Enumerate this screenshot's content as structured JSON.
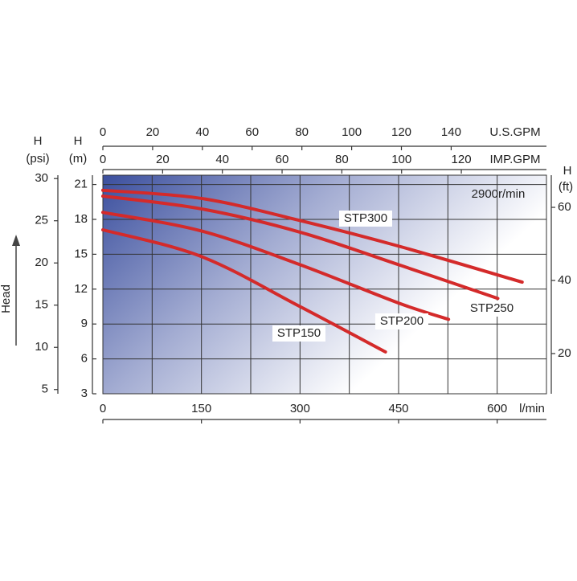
{
  "chart_data": {
    "type": "line",
    "annotation": "2900r/min",
    "side_label": "Head",
    "xlabel": "l/min",
    "xlim": [
      0,
      675
    ],
    "xticks": [
      0,
      150,
      300,
      450,
      600
    ],
    "xgrid": [
      75,
      225,
      375,
      525
    ],
    "ylabel": [
      "H",
      "(m)"
    ],
    "ylim": [
      3,
      21.8
    ],
    "yticks": [
      3,
      6,
      9,
      12,
      15,
      18,
      21
    ],
    "grid": true,
    "psi_axis": {
      "label": [
        "H",
        "(psi)"
      ],
      "lim": [
        4.5,
        30.4
      ],
      "ticks": [
        5,
        10,
        15,
        20,
        25,
        30
      ]
    },
    "ft_axis": {
      "label": [
        "H",
        "(ft)"
      ],
      "lim": [
        9,
        68.8
      ],
      "ticks": [
        20,
        40,
        60
      ]
    },
    "us_gpm_axis": {
      "label": "U.S.GPM",
      "lim": [
        0,
        178.3
      ],
      "ticks": [
        0,
        20,
        40,
        60,
        80,
        100,
        120,
        140
      ]
    },
    "imp_gpm_axis": {
      "label": "IMP.GPM",
      "lim": [
        0,
        148.5
      ],
      "ticks": [
        0,
        20,
        40,
        60,
        80,
        100,
        120
      ]
    },
    "series": [
      {
        "name": "STP300",
        "color": "#d42a2a",
        "x": [
          0,
          150,
          300,
          450,
          638
        ],
        "values": [
          20.5,
          19.8,
          17.9,
          15.7,
          12.6
        ]
      },
      {
        "name": "STP250",
        "color": "#d42a2a",
        "x": [
          0,
          150,
          300,
          450,
          601
        ],
        "values": [
          20.0,
          18.9,
          16.9,
          14.1,
          11.2
        ]
      },
      {
        "name": "STP200",
        "color": "#d42a2a",
        "x": [
          0,
          150,
          300,
          450,
          526
        ],
        "values": [
          18.6,
          17.0,
          14.1,
          10.8,
          9.4
        ]
      },
      {
        "name": "STP150",
        "color": "#d42a2a",
        "x": [
          0,
          150,
          300,
          430
        ],
        "values": [
          17.1,
          14.8,
          10.5,
          6.6
        ]
      }
    ]
  }
}
